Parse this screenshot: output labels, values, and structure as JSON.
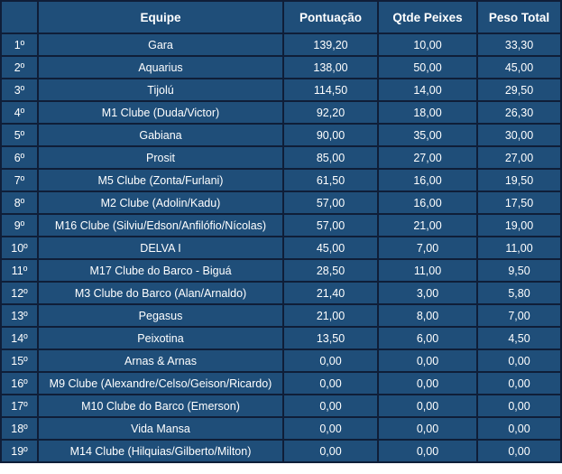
{
  "colors": {
    "cell_bg": "#1F4E79",
    "border": "#0F1E38",
    "text": "#FFFFFF",
    "page_bg": "#FFFFFF"
  },
  "table": {
    "columns": {
      "rank": "",
      "team": "Equipe",
      "pontuacao": "Pontuação",
      "qtde_peixes": "Qtde Peixes",
      "peso_total": "Peso Total"
    },
    "rows": [
      {
        "rank": "1º",
        "team": "Gara",
        "pontuacao": "139,20",
        "qtde_peixes": "10,00",
        "peso_total": "33,30"
      },
      {
        "rank": "2º",
        "team": "Aquarius",
        "pontuacao": "138,00",
        "qtde_peixes": "50,00",
        "peso_total": "45,00"
      },
      {
        "rank": "3º",
        "team": "Tijolú",
        "pontuacao": "114,50",
        "qtde_peixes": "14,00",
        "peso_total": "29,50"
      },
      {
        "rank": "4º",
        "team": "M1 Clube (Duda/Victor)",
        "pontuacao": "92,20",
        "qtde_peixes": "18,00",
        "peso_total": "26,30"
      },
      {
        "rank": "5º",
        "team": "Gabiana",
        "pontuacao": "90,00",
        "qtde_peixes": "35,00",
        "peso_total": "30,00"
      },
      {
        "rank": "6º",
        "team": "Prosit",
        "pontuacao": "85,00",
        "qtde_peixes": "27,00",
        "peso_total": "27,00"
      },
      {
        "rank": "7º",
        "team": "M5 Clube (Zonta/Furlani)",
        "pontuacao": "61,50",
        "qtde_peixes": "16,00",
        "peso_total": "19,50"
      },
      {
        "rank": "8º",
        "team": "M2 Clube (Adolin/Kadu)",
        "pontuacao": "57,00",
        "qtde_peixes": "16,00",
        "peso_total": "17,50"
      },
      {
        "rank": "9º",
        "team": "M16 Clube (Silviu/Edson/Anfilófio/Nícolas)",
        "pontuacao": "57,00",
        "qtde_peixes": "21,00",
        "peso_total": "19,00"
      },
      {
        "rank": "10º",
        "team": "DELVA I",
        "pontuacao": "45,00",
        "qtde_peixes": "7,00",
        "peso_total": "11,00"
      },
      {
        "rank": "11º",
        "team": "M17 Clube do Barco - Biguá",
        "pontuacao": "28,50",
        "qtde_peixes": "11,00",
        "peso_total": "9,50"
      },
      {
        "rank": "12º",
        "team": "M3 Clube do Barco (Alan/Arnaldo)",
        "pontuacao": "21,40",
        "qtde_peixes": "3,00",
        "peso_total": "5,80"
      },
      {
        "rank": "13º",
        "team": "Pegasus",
        "pontuacao": "21,00",
        "qtde_peixes": "8,00",
        "peso_total": "7,00"
      },
      {
        "rank": "14º",
        "team": "Peixotina",
        "pontuacao": "13,50",
        "qtde_peixes": "6,00",
        "peso_total": "4,50"
      },
      {
        "rank": "15º",
        "team": "Arnas & Arnas",
        "pontuacao": "0,00",
        "qtde_peixes": "0,00",
        "peso_total": "0,00"
      },
      {
        "rank": "16º",
        "team": "M9 Clube (Alexandre/Celso/Geison/Ricardo)",
        "pontuacao": "0,00",
        "qtde_peixes": "0,00",
        "peso_total": "0,00"
      },
      {
        "rank": "17º",
        "team": "M10 Clube do Barco (Emerson)",
        "pontuacao": "0,00",
        "qtde_peixes": "0,00",
        "peso_total": "0,00"
      },
      {
        "rank": "18º",
        "team": "Vida Mansa",
        "pontuacao": "0,00",
        "qtde_peixes": "0,00",
        "peso_total": "0,00"
      },
      {
        "rank": "19º",
        "team": "M14 Clube (Hilquias/Gilberto/Milton)",
        "pontuacao": "0,00",
        "qtde_peixes": "0,00",
        "peso_total": "0,00"
      }
    ]
  }
}
